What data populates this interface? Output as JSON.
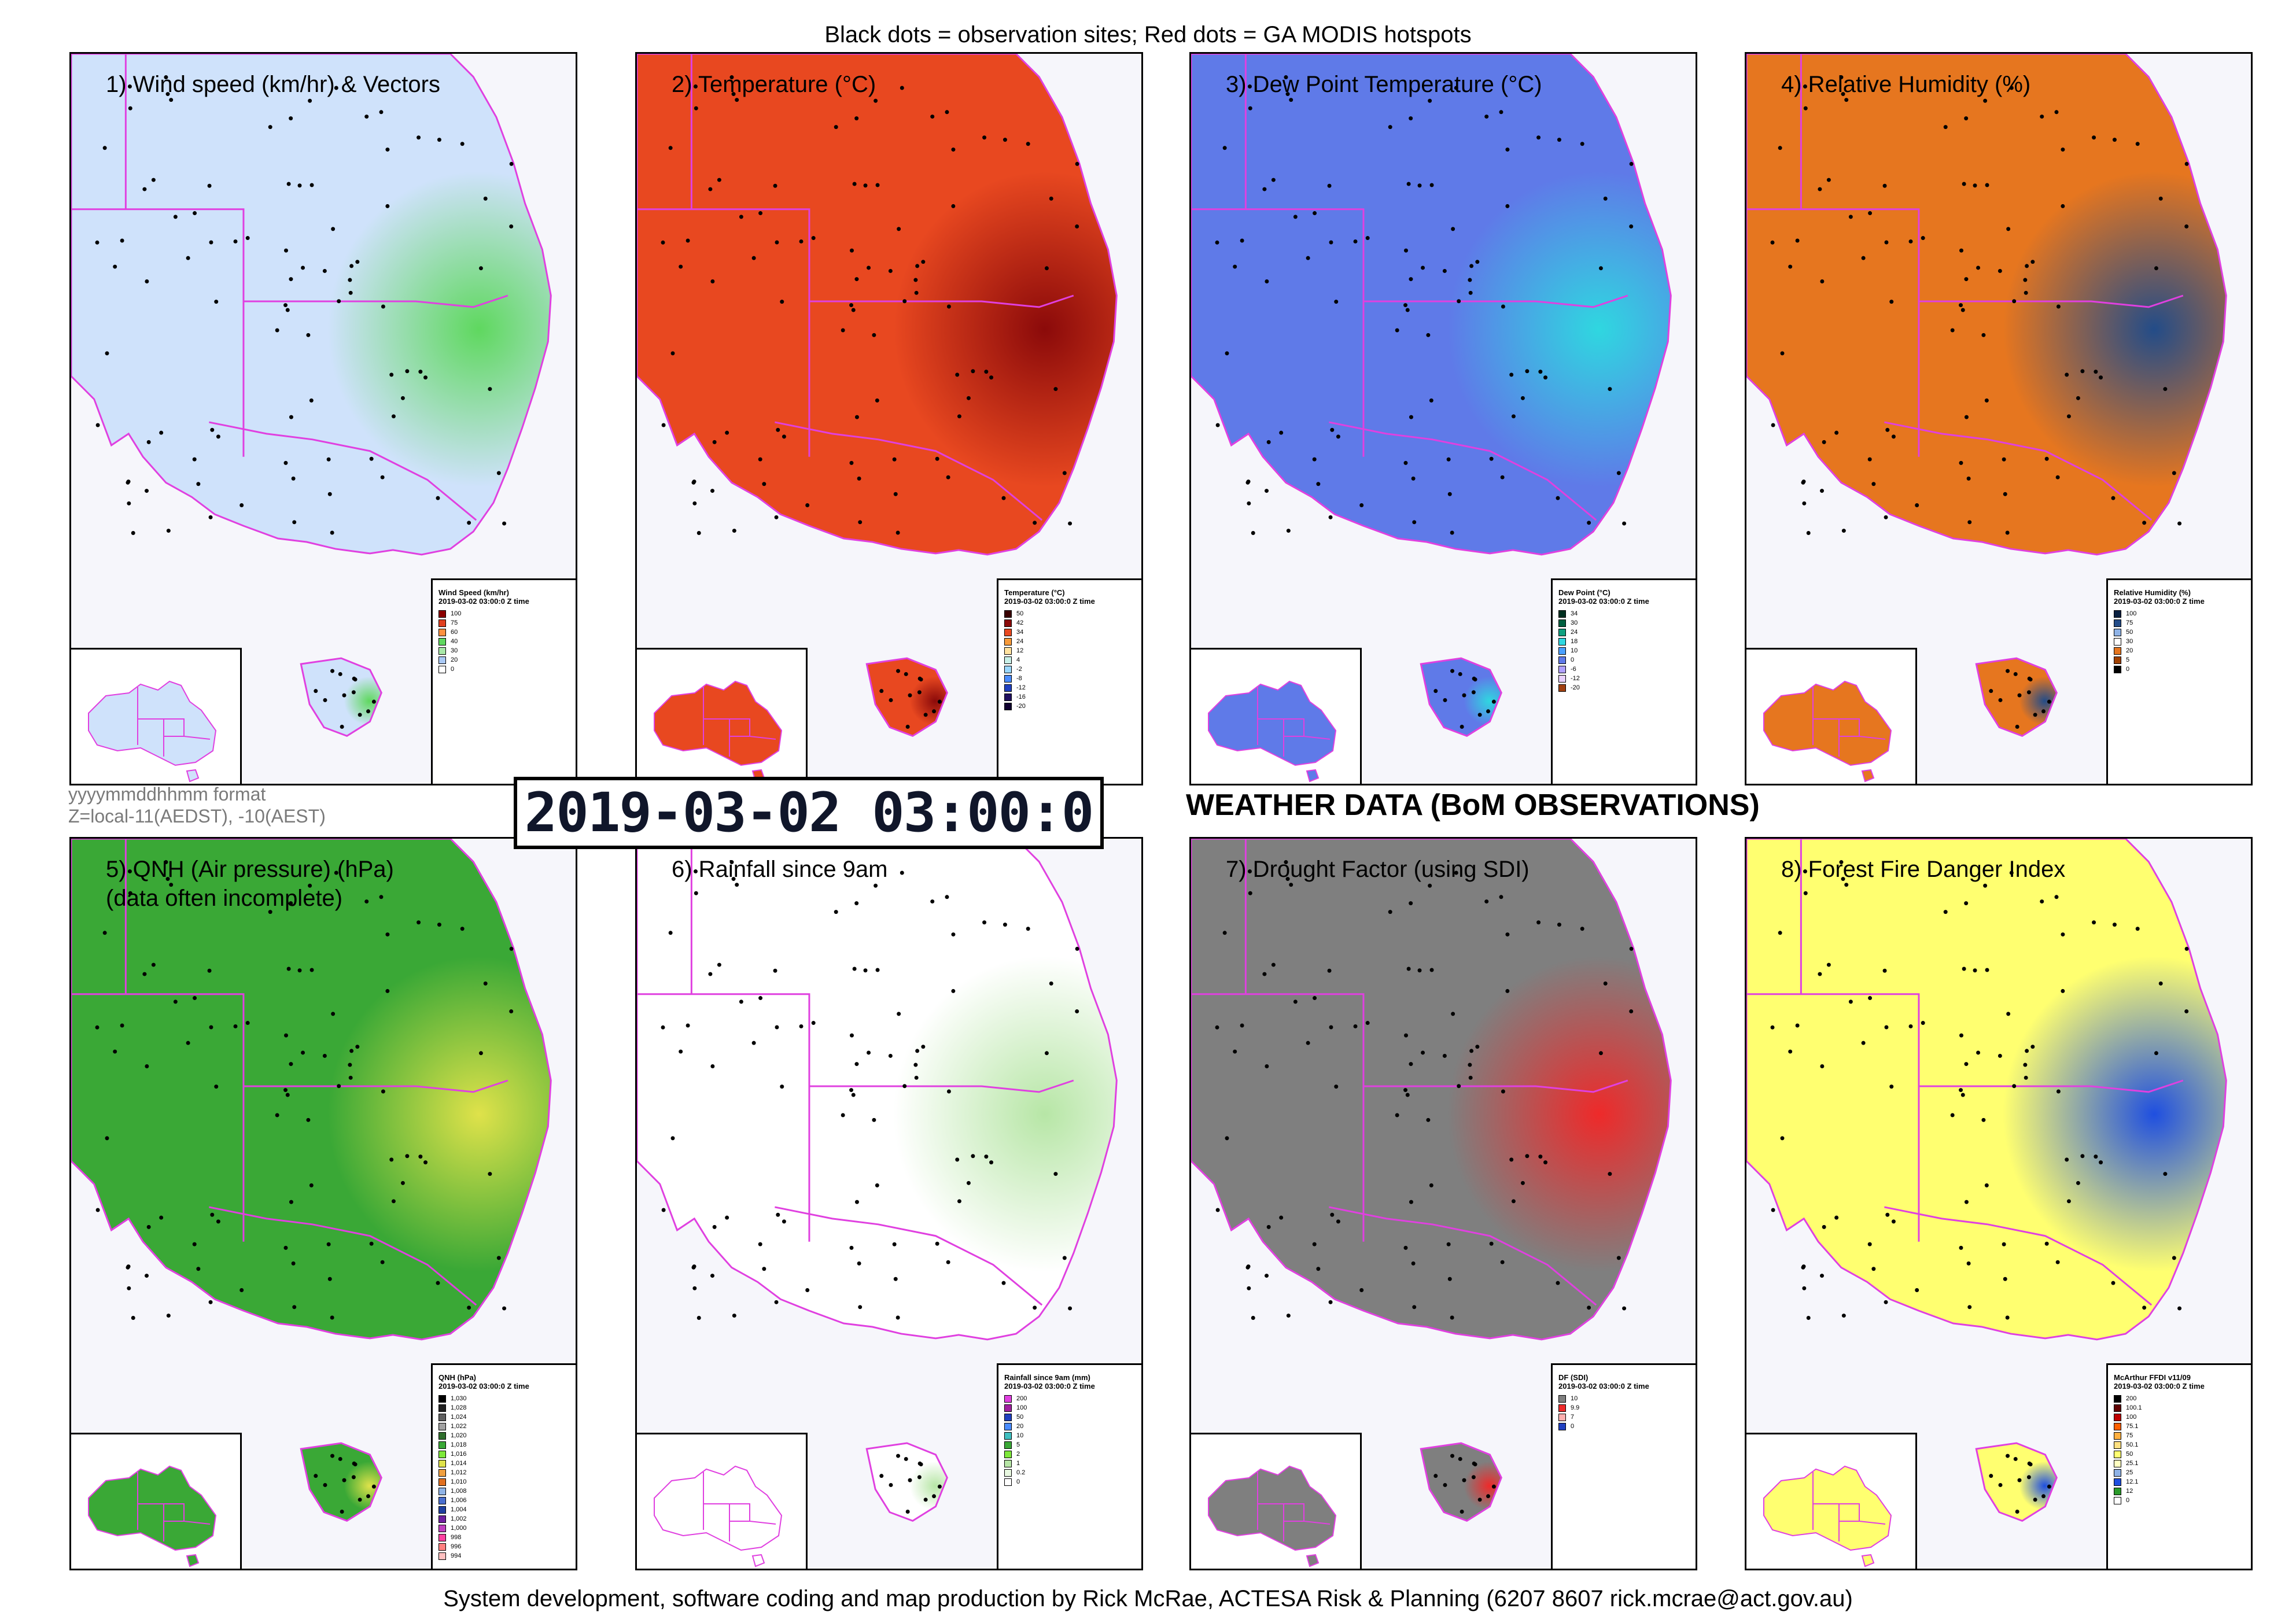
{
  "header": {
    "caption": "Black dots = observation sites; Red dots = GA MODIS hotspots"
  },
  "footer": {
    "credit": "System development, software coding and map production by Rick McRae, ACTESA Risk & Planning (6207 8607 rick.mcrae@act.gov.au)"
  },
  "timestamp": "2019-03-02 03:00:0",
  "format_note": {
    "line1": "yyyymmddhhmm format",
    "line2": "Z=local-11(AEDST), -10(AEST)"
  },
  "page_title": "WEATHER DATA (BoM OBSERVATIONS)",
  "panels": [
    {
      "title": "1) Wind speed (km/hr) & Vectors",
      "fill": "#cfe2fb",
      "accent": "#5fd85f",
      "legend": {
        "title": "Wind Speed (km/hr)",
        "date": "2019-03-02 03:00:0 Z time",
        "items": [
          {
            "label": "100",
            "color": "#8b0000"
          },
          {
            "label": "75",
            "color": "#e04020"
          },
          {
            "label": "60",
            "color": "#ff9040"
          },
          {
            "label": "40",
            "color": "#5fd85f"
          },
          {
            "label": "30",
            "color": "#a8e8a8"
          },
          {
            "label": "20",
            "color": "#a9c9f5"
          },
          {
            "label": "0",
            "color": "#ffffff"
          }
        ]
      }
    },
    {
      "title": "2) Temperature (°C)",
      "fill": "#e84820",
      "accent": "#8b0a0a",
      "legend": {
        "title": "Temperature (°C)",
        "date": "2019-03-02 03:00:0 Z time",
        "items": [
          {
            "label": "50",
            "color": "#3a0000"
          },
          {
            "label": "42",
            "color": "#8b0a0a"
          },
          {
            "label": "34",
            "color": "#e84820"
          },
          {
            "label": "24",
            "color": "#f79a3a"
          },
          {
            "label": "12",
            "color": "#ffe3a0"
          },
          {
            "label": "4",
            "color": "#c8f0e8"
          },
          {
            "label": "-2",
            "color": "#9ad8ff"
          },
          {
            "label": "-8",
            "color": "#4a8cff"
          },
          {
            "label": "-12",
            "color": "#2040c0"
          },
          {
            "label": "-16",
            "color": "#201060"
          },
          {
            "label": "-20",
            "color": "#100030"
          }
        ]
      }
    },
    {
      "title": "3) Dew Point Temperature (°C)",
      "fill": "#5f7ae8",
      "accent": "#2fd7e0",
      "legend": {
        "title": "Dew Point (°C)",
        "date": "2019-03-02 03:00:0 Z time",
        "items": [
          {
            "label": "34",
            "color": "#003020"
          },
          {
            "label": "30",
            "color": "#006040"
          },
          {
            "label": "24",
            "color": "#10a080"
          },
          {
            "label": "18",
            "color": "#2fd7e0"
          },
          {
            "label": "10",
            "color": "#4aa0ff"
          },
          {
            "label": "0",
            "color": "#5f7ae8"
          },
          {
            "label": "-6",
            "color": "#b0a0ff"
          },
          {
            "label": "-12",
            "color": "#e8d0ff"
          },
          {
            "label": "-20",
            "color": "#a04010"
          }
        ]
      }
    },
    {
      "title": "4) Relative Humidity (%)",
      "fill": "#e6761f",
      "accent": "#234c88",
      "legend": {
        "title": "Relative Humidity (%)",
        "date": "2019-03-02 03:00:0 Z time",
        "items": [
          {
            "label": "100",
            "color": "#0a2040"
          },
          {
            "label": "75",
            "color": "#234c88"
          },
          {
            "label": "50",
            "color": "#8fb3e6"
          },
          {
            "label": "30",
            "color": "#ffffff"
          },
          {
            "label": "20",
            "color": "#e6761f"
          },
          {
            "label": "5",
            "color": "#a04000"
          },
          {
            "label": "0",
            "color": "#000000"
          }
        ]
      }
    },
    {
      "title": "5) QNH (Air pressure) (hPa)\n(data often incomplete)",
      "fill": "#3aa836",
      "accent": "#dfe24a",
      "legend": {
        "title": "QNH (hPa)",
        "date": "2019-03-02 03:00:0 Z time",
        "items": [
          {
            "label": "1,030",
            "color": "#000000"
          },
          {
            "label": "1,028",
            "color": "#202020"
          },
          {
            "label": "1,024",
            "color": "#606060"
          },
          {
            "label": "1,022",
            "color": "#a0a0a0"
          },
          {
            "label": "1,020",
            "color": "#2f6e2c"
          },
          {
            "label": "1,018",
            "color": "#3aa836"
          },
          {
            "label": "1,016",
            "color": "#7ee83a"
          },
          {
            "label": "1,014",
            "color": "#dfe24a"
          },
          {
            "label": "1,012",
            "color": "#f0a040"
          },
          {
            "label": "1,010",
            "color": "#e07020"
          },
          {
            "label": "1,008",
            "color": "#8fb3e6"
          },
          {
            "label": "1,006",
            "color": "#4a6fd0"
          },
          {
            "label": "1,004",
            "color": "#2040a0"
          },
          {
            "label": "1,002",
            "color": "#7020a0"
          },
          {
            "label": "1,000",
            "color": "#c040c0"
          },
          {
            "label": "998",
            "color": "#ff40a0"
          },
          {
            "label": "996",
            "color": "#ff8080"
          },
          {
            "label": "994",
            "color": "#ffc0c0"
          }
        ]
      }
    },
    {
      "title": "6) Rainfall since 9am",
      "fill": "#ffffff",
      "accent": "#b7e6a6",
      "legend": {
        "title": "Rainfall since 9am (mm)",
        "date": "2019-03-02 03:00:0 Z time",
        "items": [
          {
            "label": "200",
            "color": "#e040e0"
          },
          {
            "label": "100",
            "color": "#a020a0"
          },
          {
            "label": "50",
            "color": "#2040c0"
          },
          {
            "label": "20",
            "color": "#4a8cff"
          },
          {
            "label": "10",
            "color": "#40c0c0"
          },
          {
            "label": "5",
            "color": "#3aa836"
          },
          {
            "label": "2",
            "color": "#7ee83a"
          },
          {
            "label": "1",
            "color": "#b7e6a6"
          },
          {
            "label": "0.2",
            "color": "#e8f8e0"
          },
          {
            "label": "0",
            "color": "#ffffff"
          }
        ]
      }
    },
    {
      "title": "7) Drought Factor (using SDI)",
      "fill": "#7f7f7f",
      "accent": "#ee2a2a",
      "legend": {
        "title": "DF (SDI)",
        "date": "2019-03-02 03:00:0 Z time",
        "items": [
          {
            "label": "10",
            "color": "#7f7f7f"
          },
          {
            "label": "9.9",
            "color": "#ee2a2a"
          },
          {
            "label": "7",
            "color": "#ffb0b0"
          },
          {
            "label": "0",
            "color": "#2040c0"
          }
        ]
      }
    },
    {
      "title": "8) Forest Fire Danger Index",
      "fill": "#ffff70",
      "accent": "#1f4fe0",
      "legend": {
        "title": "McArthur FFDI v11/09",
        "date": "2019-03-02 03:00:0 Z time",
        "items": [
          {
            "label": "200",
            "color": "#000000"
          },
          {
            "label": "100.1",
            "color": "#600000"
          },
          {
            "label": "100",
            "color": "#c00000"
          },
          {
            "label": "75.1",
            "color": "#ff6000"
          },
          {
            "label": "75",
            "color": "#ffb040"
          },
          {
            "label": "50.1",
            "color": "#ffe080"
          },
          {
            "label": "50",
            "color": "#ffff70"
          },
          {
            "label": "25.1",
            "color": "#ffffc0"
          },
          {
            "label": "25",
            "color": "#8fb3e6"
          },
          {
            "label": "12.1",
            "color": "#1f4fe0"
          },
          {
            "label": "12",
            "color": "#2a9a2a"
          },
          {
            "label": "0",
            "color": "#ffffff"
          }
        ]
      }
    }
  ]
}
